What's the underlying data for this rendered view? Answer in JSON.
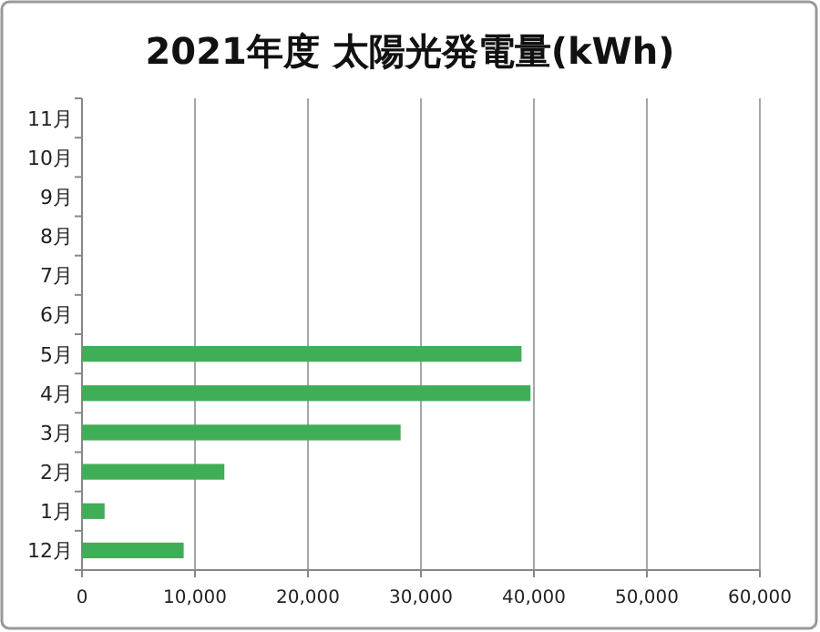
{
  "chart_data": {
    "type": "bar",
    "orientation": "horizontal",
    "title": "2021年度 太陽光発電量(kWh)",
    "categories": [
      "11月",
      "10月",
      "9月",
      "8月",
      "7月",
      "6月",
      "5月",
      "4月",
      "3月",
      "2月",
      "1月",
      "12月"
    ],
    "values": [
      null,
      null,
      null,
      null,
      null,
      null,
      38900,
      39700,
      28200,
      12600,
      2000,
      9000
    ],
    "color": "#3fae57",
    "xlim": [
      0,
      60000
    ],
    "xticks": [
      0,
      {
        "value": 10000,
        "label": "10,000"
      },
      {
        "value": 20000,
        "label": "20,000"
      },
      {
        "value": 30000,
        "label": "30,000"
      },
      {
        "value": 40000,
        "label": "40,000"
      },
      {
        "value": 50000,
        "label": "50,000"
      },
      {
        "value": 60000,
        "label": "60,000"
      }
    ],
    "grid": "x"
  }
}
